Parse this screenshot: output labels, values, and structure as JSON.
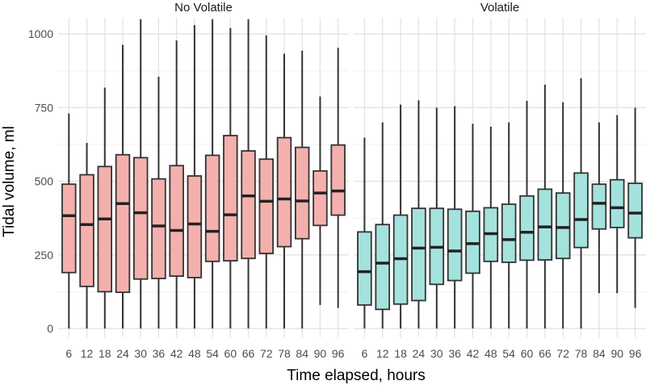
{
  "chart_data": {
    "type": "boxplot",
    "facets": [
      "No Volatile",
      "Volatile"
    ],
    "categories": [
      "6",
      "12",
      "18",
      "24",
      "30",
      "36",
      "42",
      "48",
      "54",
      "60",
      "66",
      "72",
      "78",
      "84",
      "90",
      "96"
    ],
    "xlabel": "Time elapsed, hours",
    "ylabel": "Tidal volume, ml",
    "yticks": [
      0,
      250,
      500,
      750,
      1000
    ],
    "ylim": [
      -30,
      1055
    ],
    "grid": true,
    "legend": "none",
    "panels": [
      {
        "facet": "No Volatile",
        "color": "#f4b0ad",
        "boxes": [
          {
            "x": "6",
            "lower": 0,
            "q1": 190,
            "median": 383,
            "q3": 490,
            "upper": 730
          },
          {
            "x": "12",
            "lower": 0,
            "q1": 143,
            "median": 353,
            "q3": 522,
            "upper": 630
          },
          {
            "x": "18",
            "lower": 0,
            "q1": 125,
            "median": 372,
            "q3": 550,
            "upper": 818
          },
          {
            "x": "24",
            "lower": 0,
            "q1": 123,
            "median": 424,
            "q3": 590,
            "upper": 963
          },
          {
            "x": "30",
            "lower": 0,
            "q1": 168,
            "median": 393,
            "q3": 580,
            "upper": 1050
          },
          {
            "x": "36",
            "lower": 0,
            "q1": 170,
            "median": 348,
            "q3": 508,
            "upper": 855
          },
          {
            "x": "42",
            "lower": 0,
            "q1": 178,
            "median": 333,
            "q3": 553,
            "upper": 978
          },
          {
            "x": "48",
            "lower": 0,
            "q1": 173,
            "median": 355,
            "q3": 518,
            "upper": 1030
          },
          {
            "x": "54",
            "lower": 0,
            "q1": 228,
            "median": 330,
            "q3": 588,
            "upper": 1050
          },
          {
            "x": "60",
            "lower": 0,
            "q1": 230,
            "median": 386,
            "q3": 655,
            "upper": 1020
          },
          {
            "x": "66",
            "lower": 0,
            "q1": 238,
            "median": 450,
            "q3": 603,
            "upper": 1050
          },
          {
            "x": "72",
            "lower": 0,
            "q1": 255,
            "median": 432,
            "q3": 575,
            "upper": 995
          },
          {
            "x": "78",
            "lower": 0,
            "q1": 278,
            "median": 440,
            "q3": 648,
            "upper": 933
          },
          {
            "x": "84",
            "lower": 0,
            "q1": 305,
            "median": 433,
            "q3": 615,
            "upper": 943
          },
          {
            "x": "90",
            "lower": 80,
            "q1": 350,
            "median": 460,
            "q3": 535,
            "upper": 788
          },
          {
            "x": "96",
            "lower": 70,
            "q1": 385,
            "median": 467,
            "q3": 623,
            "upper": 953
          }
        ]
      },
      {
        "facet": "Volatile",
        "color": "#a4e2de",
        "boxes": [
          {
            "x": "6",
            "lower": 0,
            "q1": 80,
            "median": 193,
            "q3": 328,
            "upper": 648
          },
          {
            "x": "12",
            "lower": 0,
            "q1": 65,
            "median": 222,
            "q3": 353,
            "upper": 700
          },
          {
            "x": "18",
            "lower": 0,
            "q1": 83,
            "median": 237,
            "q3": 385,
            "upper": 760
          },
          {
            "x": "24",
            "lower": 0,
            "q1": 95,
            "median": 273,
            "q3": 408,
            "upper": 775
          },
          {
            "x": "30",
            "lower": 0,
            "q1": 150,
            "median": 276,
            "q3": 408,
            "upper": 750
          },
          {
            "x": "36",
            "lower": 0,
            "q1": 163,
            "median": 263,
            "q3": 405,
            "upper": 755
          },
          {
            "x": "42",
            "lower": 0,
            "q1": 188,
            "median": 288,
            "q3": 398,
            "upper": 695
          },
          {
            "x": "48",
            "lower": 0,
            "q1": 228,
            "median": 322,
            "q3": 410,
            "upper": 685
          },
          {
            "x": "54",
            "lower": 0,
            "q1": 225,
            "median": 302,
            "q3": 422,
            "upper": 700
          },
          {
            "x": "60",
            "lower": 0,
            "q1": 232,
            "median": 327,
            "q3": 450,
            "upper": 773
          },
          {
            "x": "66",
            "lower": 0,
            "q1": 233,
            "median": 345,
            "q3": 473,
            "upper": 828
          },
          {
            "x": "72",
            "lower": 0,
            "q1": 238,
            "median": 343,
            "q3": 460,
            "upper": 768
          },
          {
            "x": "78",
            "lower": 0,
            "q1": 275,
            "median": 370,
            "q3": 528,
            "upper": 850
          },
          {
            "x": "84",
            "lower": 120,
            "q1": 338,
            "median": 425,
            "q3": 490,
            "upper": 700
          },
          {
            "x": "90",
            "lower": 120,
            "q1": 343,
            "median": 410,
            "q3": 505,
            "upper": 725
          },
          {
            "x": "96",
            "lower": 70,
            "q1": 308,
            "median": 392,
            "q3": 493,
            "upper": 750
          }
        ]
      }
    ]
  }
}
